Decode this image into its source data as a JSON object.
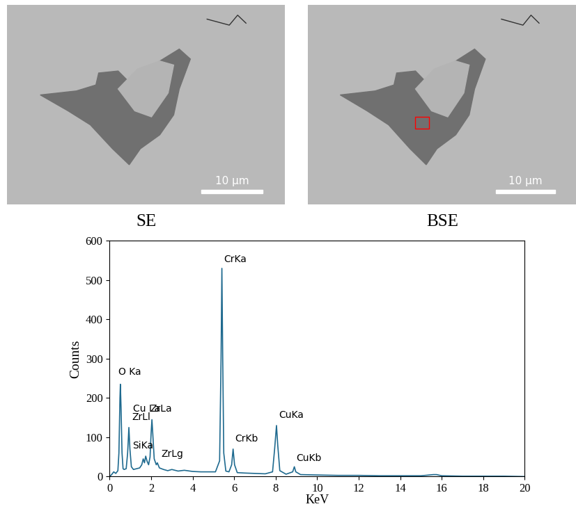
{
  "images": [
    {
      "caption": "SE",
      "scale_bar": "10 μm"
    },
    {
      "caption": "BSE",
      "scale_bar": "10 μm"
    }
  ],
  "chart_data": {
    "type": "line",
    "color": "#1f6a8f",
    "x_label": "KeV",
    "y_label": "Counts",
    "x": [
      0.0,
      0.1,
      0.2,
      0.3,
      0.4,
      0.45,
      0.5,
      0.52,
      0.55,
      0.6,
      0.65,
      0.7,
      0.8,
      0.87,
      0.93,
      0.98,
      1.05,
      1.15,
      1.3,
      1.45,
      1.55,
      1.62,
      1.68,
      1.74,
      1.8,
      1.88,
      1.95,
      2.0,
      2.04,
      2.08,
      2.15,
      2.25,
      2.3,
      2.4,
      2.6,
      2.8,
      3.0,
      3.3,
      3.6,
      4.0,
      4.4,
      4.8,
      5.1,
      5.3,
      5.37,
      5.41,
      5.45,
      5.5,
      5.6,
      5.75,
      5.88,
      5.95,
      6.02,
      6.15,
      6.5,
      7.0,
      7.5,
      7.85,
      7.95,
      8.04,
      8.1,
      8.2,
      8.5,
      8.82,
      8.9,
      8.97,
      9.2,
      10.0,
      11.0,
      12.0,
      13.0,
      14.0,
      15.0,
      15.6,
      15.75,
      16.0,
      17.0,
      18.0,
      19.0,
      20.0
    ],
    "values": [
      0,
      5,
      12,
      8,
      15,
      60,
      200,
      235,
      180,
      60,
      20,
      18,
      20,
      60,
      125,
      70,
      25,
      18,
      20,
      22,
      30,
      45,
      35,
      52,
      40,
      30,
      50,
      110,
      145,
      110,
      45,
      30,
      35,
      22,
      18,
      15,
      18,
      14,
      16,
      13,
      12,
      12,
      12,
      40,
      300,
      530,
      300,
      60,
      14,
      12,
      30,
      70,
      30,
      10,
      9,
      8,
      7,
      12,
      70,
      130,
      80,
      15,
      6,
      12,
      25,
      12,
      5,
      4,
      3,
      3,
      2,
      2,
      2,
      5,
      5,
      2,
      1,
      1,
      1,
      0
    ],
    "annotations": [
      {
        "text": "O Ka",
        "x": 0.52,
        "y": 235
      },
      {
        "text": "Cu La",
        "x": 0.93,
        "y": 125
      },
      {
        "text": "ZrLl",
        "x": 1.62,
        "y": 45
      },
      {
        "text": "SiKa",
        "x": 1.74,
        "y": 52
      },
      {
        "text": "ZrLa",
        "x": 2.04,
        "y": 145
      },
      {
        "text": "ZrLg",
        "x": 2.3,
        "y": 35
      },
      {
        "text": "CrKa",
        "x": 5.41,
        "y": 530
      },
      {
        "text": "CrKb",
        "x": 5.95,
        "y": 70
      },
      {
        "text": "CuKa",
        "x": 8.04,
        "y": 130
      },
      {
        "text": "CuKb",
        "x": 8.9,
        "y": 25
      }
    ],
    "xlim": [
      0,
      20
    ],
    "xticks": [
      0,
      2,
      4,
      6,
      8,
      10,
      12,
      14,
      16,
      18,
      20
    ],
    "ylim": [
      0,
      600
    ],
    "yticks": [
      0,
      100,
      200,
      300,
      400,
      500,
      600
    ],
    "grid": false
  }
}
